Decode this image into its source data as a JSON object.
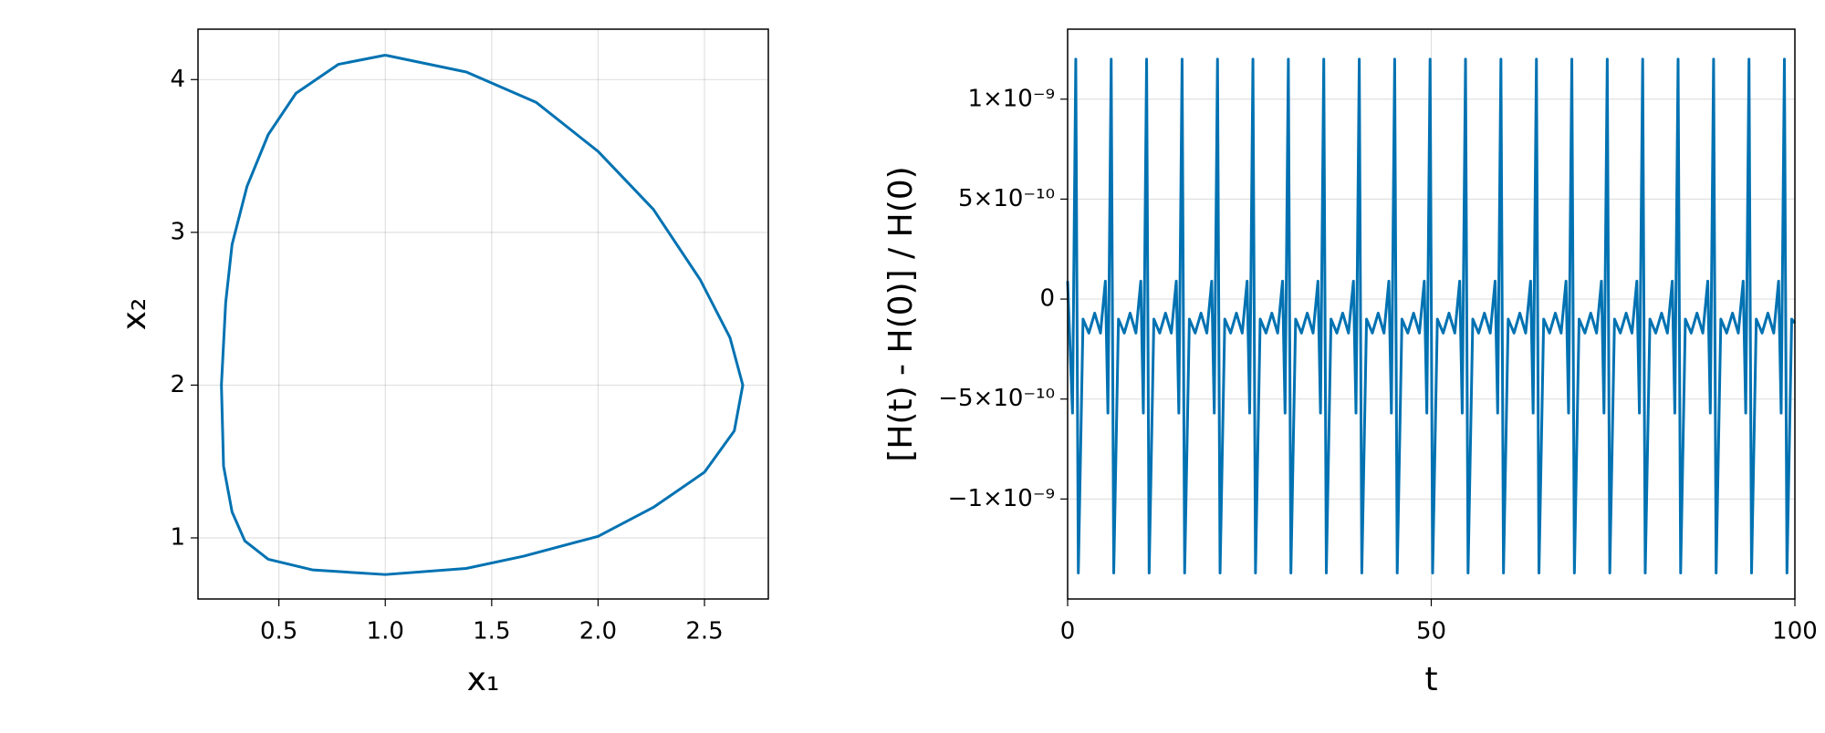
{
  "chart_data": [
    {
      "type": "line",
      "xlabel": "x₁",
      "ylabel": "x₂",
      "color": "#0072b2",
      "grid": true,
      "xlim": [
        0.12,
        2.8
      ],
      "ylim": [
        0.6,
        4.33
      ],
      "xticks": [
        0.5,
        {
          "value": 1,
          "label": "1.0"
        },
        1.5,
        {
          "value": 2,
          "label": "2.0"
        },
        2.5
      ],
      "yticks": [
        1,
        2,
        3,
        4
      ],
      "x": [
        1.0,
        1.38,
        1.71,
        2.0,
        2.26,
        2.48,
        2.62,
        2.68,
        2.64,
        2.5,
        2.26,
        2.0,
        1.65,
        1.38,
        1.0,
        0.66,
        0.45,
        0.34,
        0.28,
        0.24,
        0.23,
        0.25,
        0.28,
        0.35,
        0.45,
        0.58,
        0.78,
        1.0
      ],
      "values": [
        4.16,
        4.05,
        3.85,
        3.53,
        3.15,
        2.69,
        2.31,
        2.0,
        1.7,
        1.43,
        1.2,
        1.01,
        0.88,
        0.8,
        0.76,
        0.79,
        0.86,
        0.98,
        1.17,
        1.47,
        2.0,
        2.54,
        2.92,
        3.3,
        3.64,
        3.91,
        4.1,
        4.16
      ]
    },
    {
      "type": "line",
      "xlabel": "t",
      "ylabel": "[H(t) - H(0)] / H(0)",
      "color": "#0072b2",
      "grid": true,
      "xlim": [
        0,
        100
      ],
      "ylim": [
        -1.5e-09,
        1.35e-09
      ],
      "xticks": [
        0,
        50,
        100
      ],
      "yticks": [
        {
          "value": 1e-09,
          "label": "1×10⁻⁹"
        },
        {
          "value": 5e-10,
          "label": "5×10⁻¹⁰"
        },
        0,
        {
          "value": -5e-10,
          "label": "−5×10⁻¹⁰"
        },
        {
          "value": -1e-09,
          "label": "−1×10⁻⁹"
        }
      ],
      "x": [
        0,
        0.67,
        1.12,
        1.47,
        2.12,
        2.92,
        3.72,
        4.52,
        5.19,
        5.54,
        5.99,
        6.34,
        6.99,
        7.79,
        8.59,
        9.39,
        10.06,
        10.41,
        10.86,
        11.21,
        11.86,
        12.66,
        13.46,
        14.26,
        14.94,
        15.29,
        15.74,
        16.09,
        16.74,
        17.54,
        18.34,
        19.14,
        19.81,
        20.16,
        20.61,
        20.96,
        21.61,
        22.41,
        23.21,
        24.01,
        24.68,
        25.03,
        25.48,
        25.83,
        26.48,
        27.28,
        28.08,
        28.88,
        29.55,
        29.9,
        30.35,
        30.7,
        31.35,
        32.15,
        32.95,
        33.75,
        34.42,
        34.77,
        35.22,
        35.57,
        36.22,
        37.02,
        37.82,
        38.62,
        39.3,
        39.65,
        40.1,
        40.45,
        41.1,
        41.9,
        42.7,
        43.5,
        44.17,
        44.52,
        44.97,
        45.32,
        45.97,
        46.77,
        47.57,
        48.37,
        49.04,
        49.39,
        49.84,
        50.19,
        50.84,
        51.64,
        52.44,
        53.24,
        53.91,
        54.26,
        54.71,
        55.06,
        55.71,
        56.51,
        57.31,
        58.11,
        58.78,
        59.13,
        59.58,
        59.93,
        60.58,
        61.38,
        62.18,
        62.98,
        63.66,
        64.01,
        64.46,
        64.81,
        65.46,
        66.26,
        67.06,
        67.86,
        68.53,
        68.88,
        69.33,
        69.68,
        70.33,
        71.13,
        71.93,
        72.73,
        73.4,
        73.75,
        74.2,
        74.55,
        75.2,
        76,
        76.8,
        77.6,
        78.27,
        78.62,
        79.07,
        79.42,
        80.07,
        80.87,
        81.67,
        82.47,
        83.14,
        83.49,
        83.94,
        84.29,
        84.94,
        85.74,
        86.54,
        87.34,
        88.02,
        88.37,
        88.82,
        89.17,
        89.82,
        90.62,
        91.42,
        92.22,
        92.89,
        93.24,
        93.69,
        94.04,
        94.69,
        95.49,
        96.29,
        97.09,
        97.76,
        98.11,
        98.56,
        98.91,
        99.56,
        100
      ],
      "values": [
        9e-11,
        -5.7e-10,
        1.2e-09,
        -1.37e-09,
        -1e-10,
        -1.7e-10,
        -7e-11,
        -1.7e-10,
        9e-11,
        -5.7e-10,
        1.2e-09,
        -1.37e-09,
        -1e-10,
        -1.7e-10,
        -7e-11,
        -1.7e-10,
        9e-11,
        -5.7e-10,
        1.2e-09,
        -1.37e-09,
        -1e-10,
        -1.7e-10,
        -7e-11,
        -1.7e-10,
        9e-11,
        -5.7e-10,
        1.2e-09,
        -1.37e-09,
        -1e-10,
        -1.7e-10,
        -7e-11,
        -1.7e-10,
        9e-11,
        -5.7e-10,
        1.2e-09,
        -1.37e-09,
        -1e-10,
        -1.7e-10,
        -7e-11,
        -1.7e-10,
        9e-11,
        -5.7e-10,
        1.2e-09,
        -1.37e-09,
        -1e-10,
        -1.7e-10,
        -7e-11,
        -1.7e-10,
        9e-11,
        -5.7e-10,
        1.2e-09,
        -1.37e-09,
        -1e-10,
        -1.7e-10,
        -7e-11,
        -1.7e-10,
        9e-11,
        -5.7e-10,
        1.2e-09,
        -1.37e-09,
        -1e-10,
        -1.7e-10,
        -7e-11,
        -1.7e-10,
        9e-11,
        -5.7e-10,
        1.2e-09,
        -1.37e-09,
        -1e-10,
        -1.7e-10,
        -7e-11,
        -1.7e-10,
        9e-11,
        -5.7e-10,
        1.2e-09,
        -1.37e-09,
        -1e-10,
        -1.7e-10,
        -7e-11,
        -1.7e-10,
        9e-11,
        -5.7e-10,
        1.2e-09,
        -1.37e-09,
        -1e-10,
        -1.7e-10,
        -7e-11,
        -1.7e-10,
        9e-11,
        -5.7e-10,
        1.2e-09,
        -1.37e-09,
        -1e-10,
        -1.7e-10,
        -7e-11,
        -1.7e-10,
        9e-11,
        -5.7e-10,
        1.2e-09,
        -1.37e-09,
        -1e-10,
        -1.7e-10,
        -7e-11,
        -1.7e-10,
        9e-11,
        -5.7e-10,
        1.2e-09,
        -1.37e-09,
        -1e-10,
        -1.7e-10,
        -7e-11,
        -1.7e-10,
        9e-11,
        -5.7e-10,
        1.2e-09,
        -1.37e-09,
        -1e-10,
        -1.7e-10,
        -7e-11,
        -1.7e-10,
        9e-11,
        -5.7e-10,
        1.2e-09,
        -1.37e-09,
        -1e-10,
        -1.7e-10,
        -7e-11,
        -1.7e-10,
        9e-11,
        -5.7e-10,
        1.2e-09,
        -1.37e-09,
        -1e-10,
        -1.7e-10,
        -7e-11,
        -1.7e-10,
        9e-11,
        -5.7e-10,
        1.2e-09,
        -1.37e-09,
        -1e-10,
        -1.7e-10,
        -7e-11,
        -1.7e-10,
        9e-11,
        -5.7e-10,
        1.2e-09,
        -1.37e-09,
        -1e-10,
        -1.7e-10,
        -7e-11,
        -1.7e-10,
        9e-11,
        -5.7e-10,
        1.2e-09,
        -1.37e-09,
        -1e-10,
        -1.7e-10,
        -7e-11,
        -1.7e-10,
        9e-11,
        -5.7e-10,
        1.2e-09,
        -1.37e-09,
        -1e-10,
        -1.2e-10
      ]
    }
  ]
}
